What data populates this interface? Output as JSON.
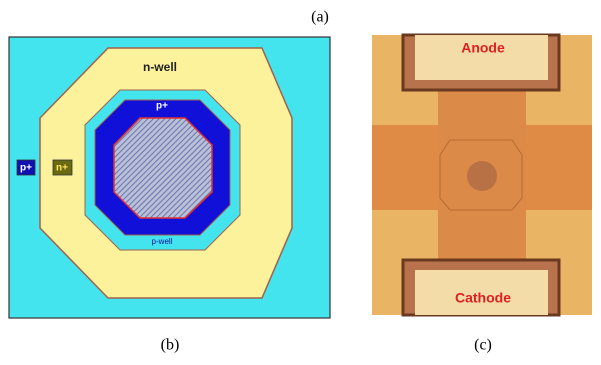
{
  "figure": {
    "panel_a": "(a)",
    "panel_b": "(b)",
    "panel_c": "(c)"
  },
  "layout": {
    "n_well": "n-well",
    "p_plus_inner": "p+",
    "p_well": "p-well",
    "p_plus_outer": "p+",
    "n_plus": "n+"
  },
  "photo": {
    "anode": "Anode",
    "cathode": "Cathode"
  }
}
